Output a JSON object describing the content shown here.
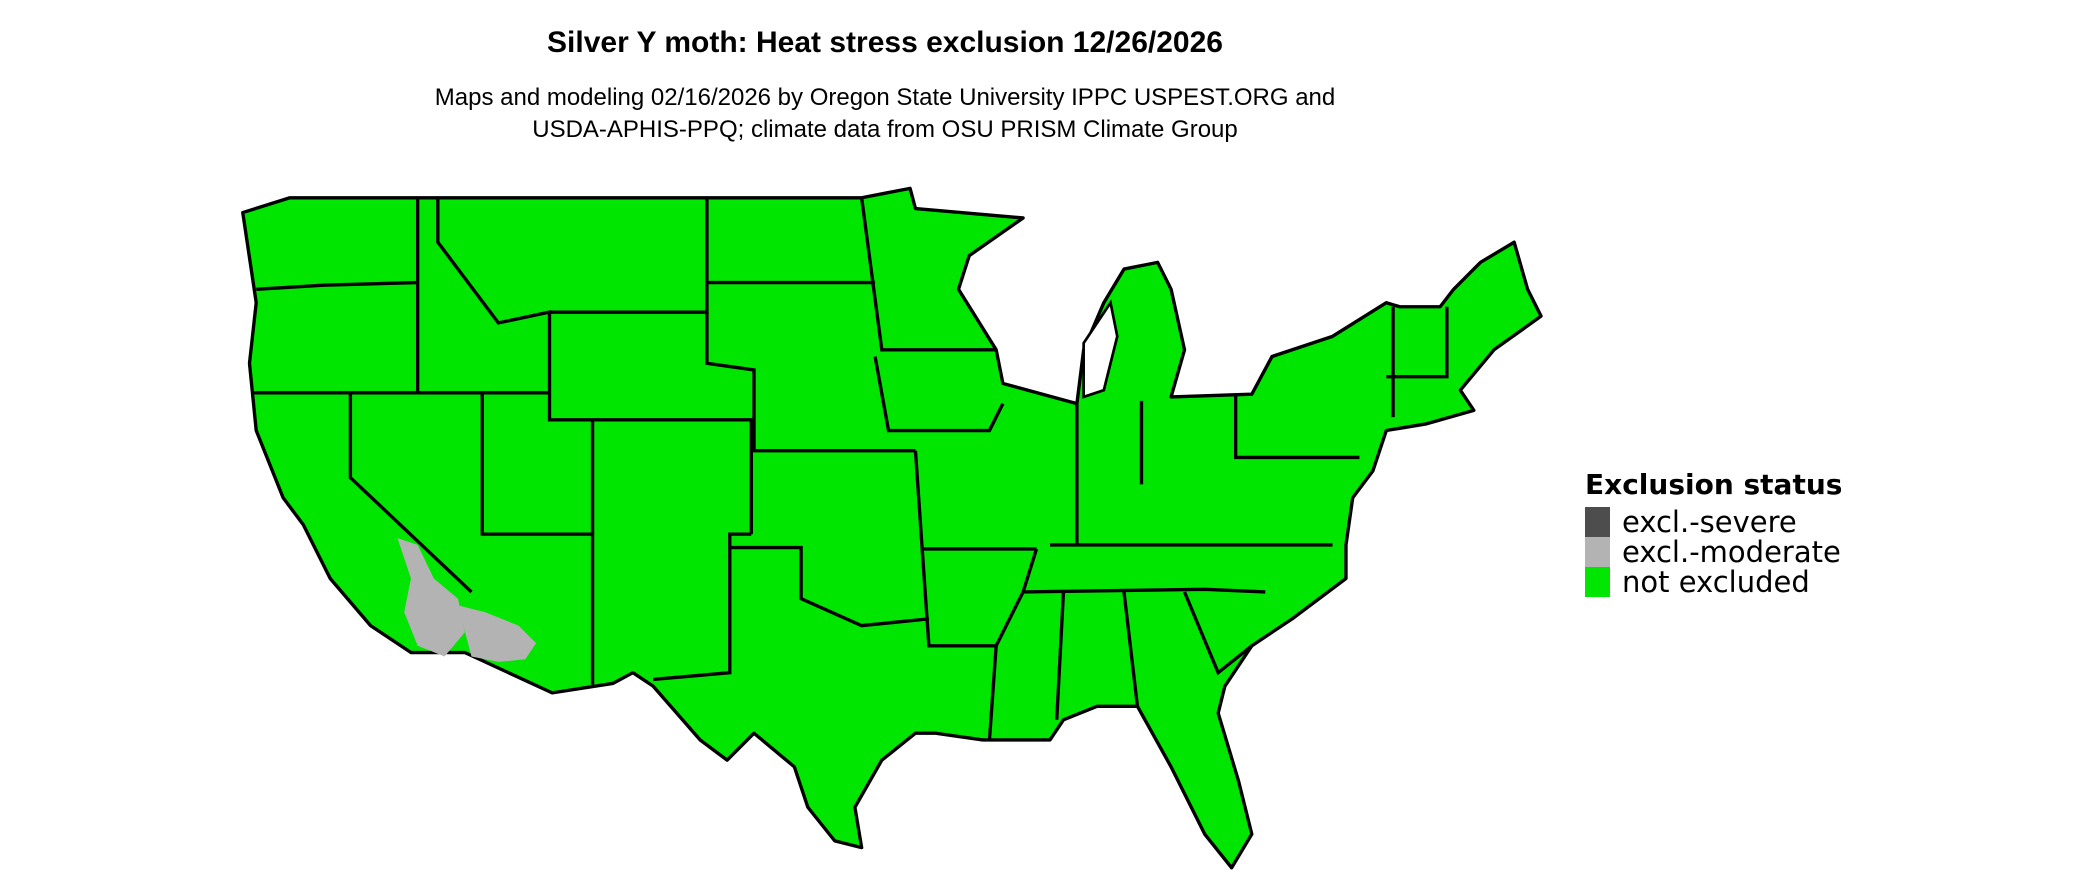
{
  "title": "Silver Y moth: Heat stress exclusion 12/26/2026",
  "subtitle_line1": "Maps and modeling 02/16/2026 by Oregon State University IPPC USPEST.ORG and",
  "subtitle_line2": "USDA-APHIS-PPQ; climate data from OSU PRISM Climate Group",
  "legend": {
    "title": "Exclusion status",
    "items": [
      {
        "label": "excl.-severe",
        "color": "#4d4d4d"
      },
      {
        "label": "excl.-moderate",
        "color": "#b3b3b3"
      },
      {
        "label": "not excluded",
        "color": "#00e600"
      }
    ]
  },
  "map": {
    "region": "Contiguous United States",
    "dominant_status": "not excluded",
    "moderate_area": "southwestern Arizona / southeastern California"
  }
}
